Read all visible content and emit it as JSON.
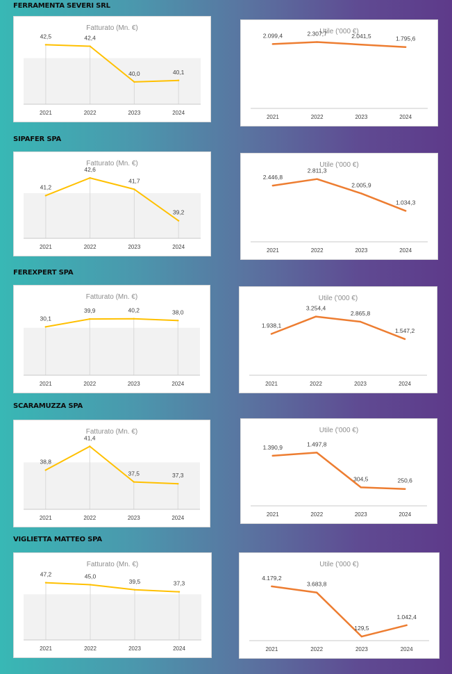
{
  "x_labels_note": "shared",
  "sections": [
    {
      "company": "FERRAMENTA SEVERI SRL"
    },
    {
      "company": "SIPAFER SPA"
    },
    {
      "company": "FEREXPERT SPA"
    },
    {
      "company": "SCARAMUZZA SPA"
    },
    {
      "company": "VIGLIETTA MATTEO SPA"
    }
  ],
  "colors": {
    "revenue_line": "#ffc000",
    "profit_line": "#ed7d31",
    "band": "#f2f2f2"
  },
  "chart_data": [
    {
      "type": "line",
      "company": "FERRAMENTA SEVERI SRL",
      "title": "Fatturato (Mn. €)",
      "categories": [
        "2021",
        "2022",
        "2023",
        "2024"
      ],
      "values": [
        42.5,
        42.4,
        40.0,
        40.1
      ],
      "labels": [
        "42,5",
        "42,4",
        "40,0",
        "40,1"
      ],
      "ylim": [
        38.5,
        43.5
      ],
      "style": "revenue"
    },
    {
      "type": "line",
      "company": "FERRAMENTA SEVERI SRL",
      "title": "Utile ('000 €)",
      "categories": [
        "2021",
        "2022",
        "2023",
        "2024"
      ],
      "values": [
        2099.4,
        2307.7,
        2041.5,
        1795.6
      ],
      "labels": [
        "2.099,4",
        "2.307,7",
        "2.041,5",
        "1.795,6"
      ],
      "ylim": [
        -4500,
        3200
      ],
      "style": "profit"
    },
    {
      "type": "line",
      "company": "SIPAFER SPA",
      "title": "Fatturato (Mn. €)",
      "categories": [
        "2021",
        "2022",
        "2023",
        "2024"
      ],
      "values": [
        41.2,
        42.6,
        41.7,
        39.2
      ],
      "labels": [
        "41,2",
        "42,6",
        "41,7",
        "39,2"
      ],
      "ylim": [
        37.8,
        43.6
      ],
      "style": "revenue"
    },
    {
      "type": "line",
      "company": "SIPAFER SPA",
      "title": "Utile ('000 €)",
      "categories": [
        "2021",
        "2022",
        "2023",
        "2024"
      ],
      "values": [
        2446.8,
        2811.3,
        2005.9,
        1034.3
      ],
      "labels": [
        "2.446,8",
        "2.811,3",
        "2.005,9",
        "1.034,3"
      ],
      "ylim": [
        -700,
        3500
      ],
      "style": "profit"
    },
    {
      "type": "line",
      "company": "FEREXPERT SPA",
      "title": "Fatturato (Mn. €)",
      "categories": [
        "2021",
        "2022",
        "2023",
        "2024"
      ],
      "values": [
        30.1,
        39.9,
        40.2,
        38.0
      ],
      "labels": [
        "30,1",
        "39,9",
        "40,2",
        "38,0"
      ],
      "ylim": [
        -30,
        65
      ],
      "style": "revenue"
    },
    {
      "type": "line",
      "company": "FEREXPERT SPA",
      "title": "Utile ('000 €)",
      "categories": [
        "2021",
        "2022",
        "2023",
        "2024"
      ],
      "values": [
        1938.1,
        3254.4,
        2865.8,
        1547.2
      ],
      "labels": [
        "1.938,1",
        "3.254,4",
        "2.865,8",
        "1.547,2"
      ],
      "ylim": [
        -1200,
        4500
      ],
      "style": "profit"
    },
    {
      "type": "line",
      "company": "SCARAMUZZA SPA",
      "title": "Fatturato (Mn. €)",
      "categories": [
        "2021",
        "2022",
        "2023",
        "2024"
      ],
      "values": [
        38.8,
        41.4,
        37.5,
        37.3
      ],
      "labels": [
        "38,8",
        "41,4",
        "37,5",
        "37,3"
      ],
      "ylim": [
        34.5,
        42.8
      ],
      "style": "revenue"
    },
    {
      "type": "line",
      "company": "SCARAMUZZA SPA",
      "title": "Utile ('000 €)",
      "categories": [
        "2021",
        "2022",
        "2023",
        "2024"
      ],
      "values": [
        1390.9,
        1497.8,
        304.5,
        250.6
      ],
      "labels": [
        "1.390,9",
        "1.497,8",
        "304,5",
        "250,6"
      ],
      "ylim": [
        -330,
        2200
      ],
      "style": "profit"
    },
    {
      "type": "line",
      "company": "VIGLIETTA MATTEO SPA",
      "title": "Fatturato (Mn. €)",
      "categories": [
        "2021",
        "2022",
        "2023",
        "2024"
      ],
      "values": [
        47.2,
        45.0,
        39.5,
        37.3
      ],
      "labels": [
        "47,2",
        "45,0",
        "39,5",
        "37,3"
      ],
      "ylim": [
        -15,
        65
      ],
      "style": "revenue"
    },
    {
      "type": "line",
      "company": "VIGLIETTA MATTEO SPA",
      "title": "Utile ('000 €)",
      "categories": [
        "2021",
        "2022",
        "2023",
        "2024"
      ],
      "values": [
        4179.2,
        3683.8,
        129.5,
        1042.4
      ],
      "labels": [
        "4.179,2",
        "3.683,8",
        "129,5",
        "1.042,4"
      ],
      "ylim": [
        -200,
        5800
      ],
      "style": "profit"
    }
  ]
}
